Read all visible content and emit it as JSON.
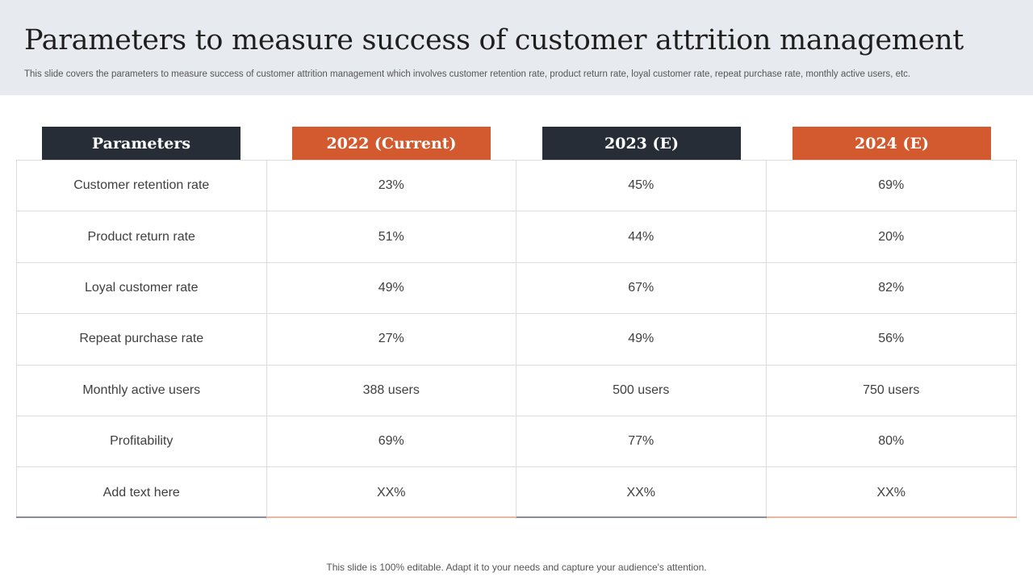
{
  "slide": {
    "title": "Parameters to measure success of customer attrition management",
    "subtitle": "This slide covers the parameters to measure success of customer attrition management which involves customer retention rate, product return rate,  loyal customer rate, repeat purchase rate, monthly active users, etc.",
    "footer": "This slide is 100% editable. Adapt it to your needs and capture your audience's attention."
  },
  "table": {
    "headers": [
      "Parameters",
      "2022 (Current)",
      "2023 (E)",
      "2024 (E)"
    ],
    "rows": [
      [
        "Customer retention rate",
        "23%",
        "45%",
        "69%"
      ],
      [
        "Product return  rate",
        "51%",
        "44%",
        "20%"
      ],
      [
        "Loyal customer  rate",
        "49%",
        "67%",
        "82%"
      ],
      [
        "Repeat purchase rate",
        "27%",
        "49%",
        "56%"
      ],
      [
        "Monthly  active users",
        "388 users",
        "500 users",
        "750 users"
      ],
      [
        "Profitability",
        "69%",
        "77%",
        "80%"
      ],
      [
        "Add text here",
        "XX%",
        "XX%",
        "XX%"
      ]
    ]
  },
  "colors": {
    "dark_header": "#262d37",
    "orange_header": "#d35a2f",
    "header_band": "#e7eaee"
  }
}
